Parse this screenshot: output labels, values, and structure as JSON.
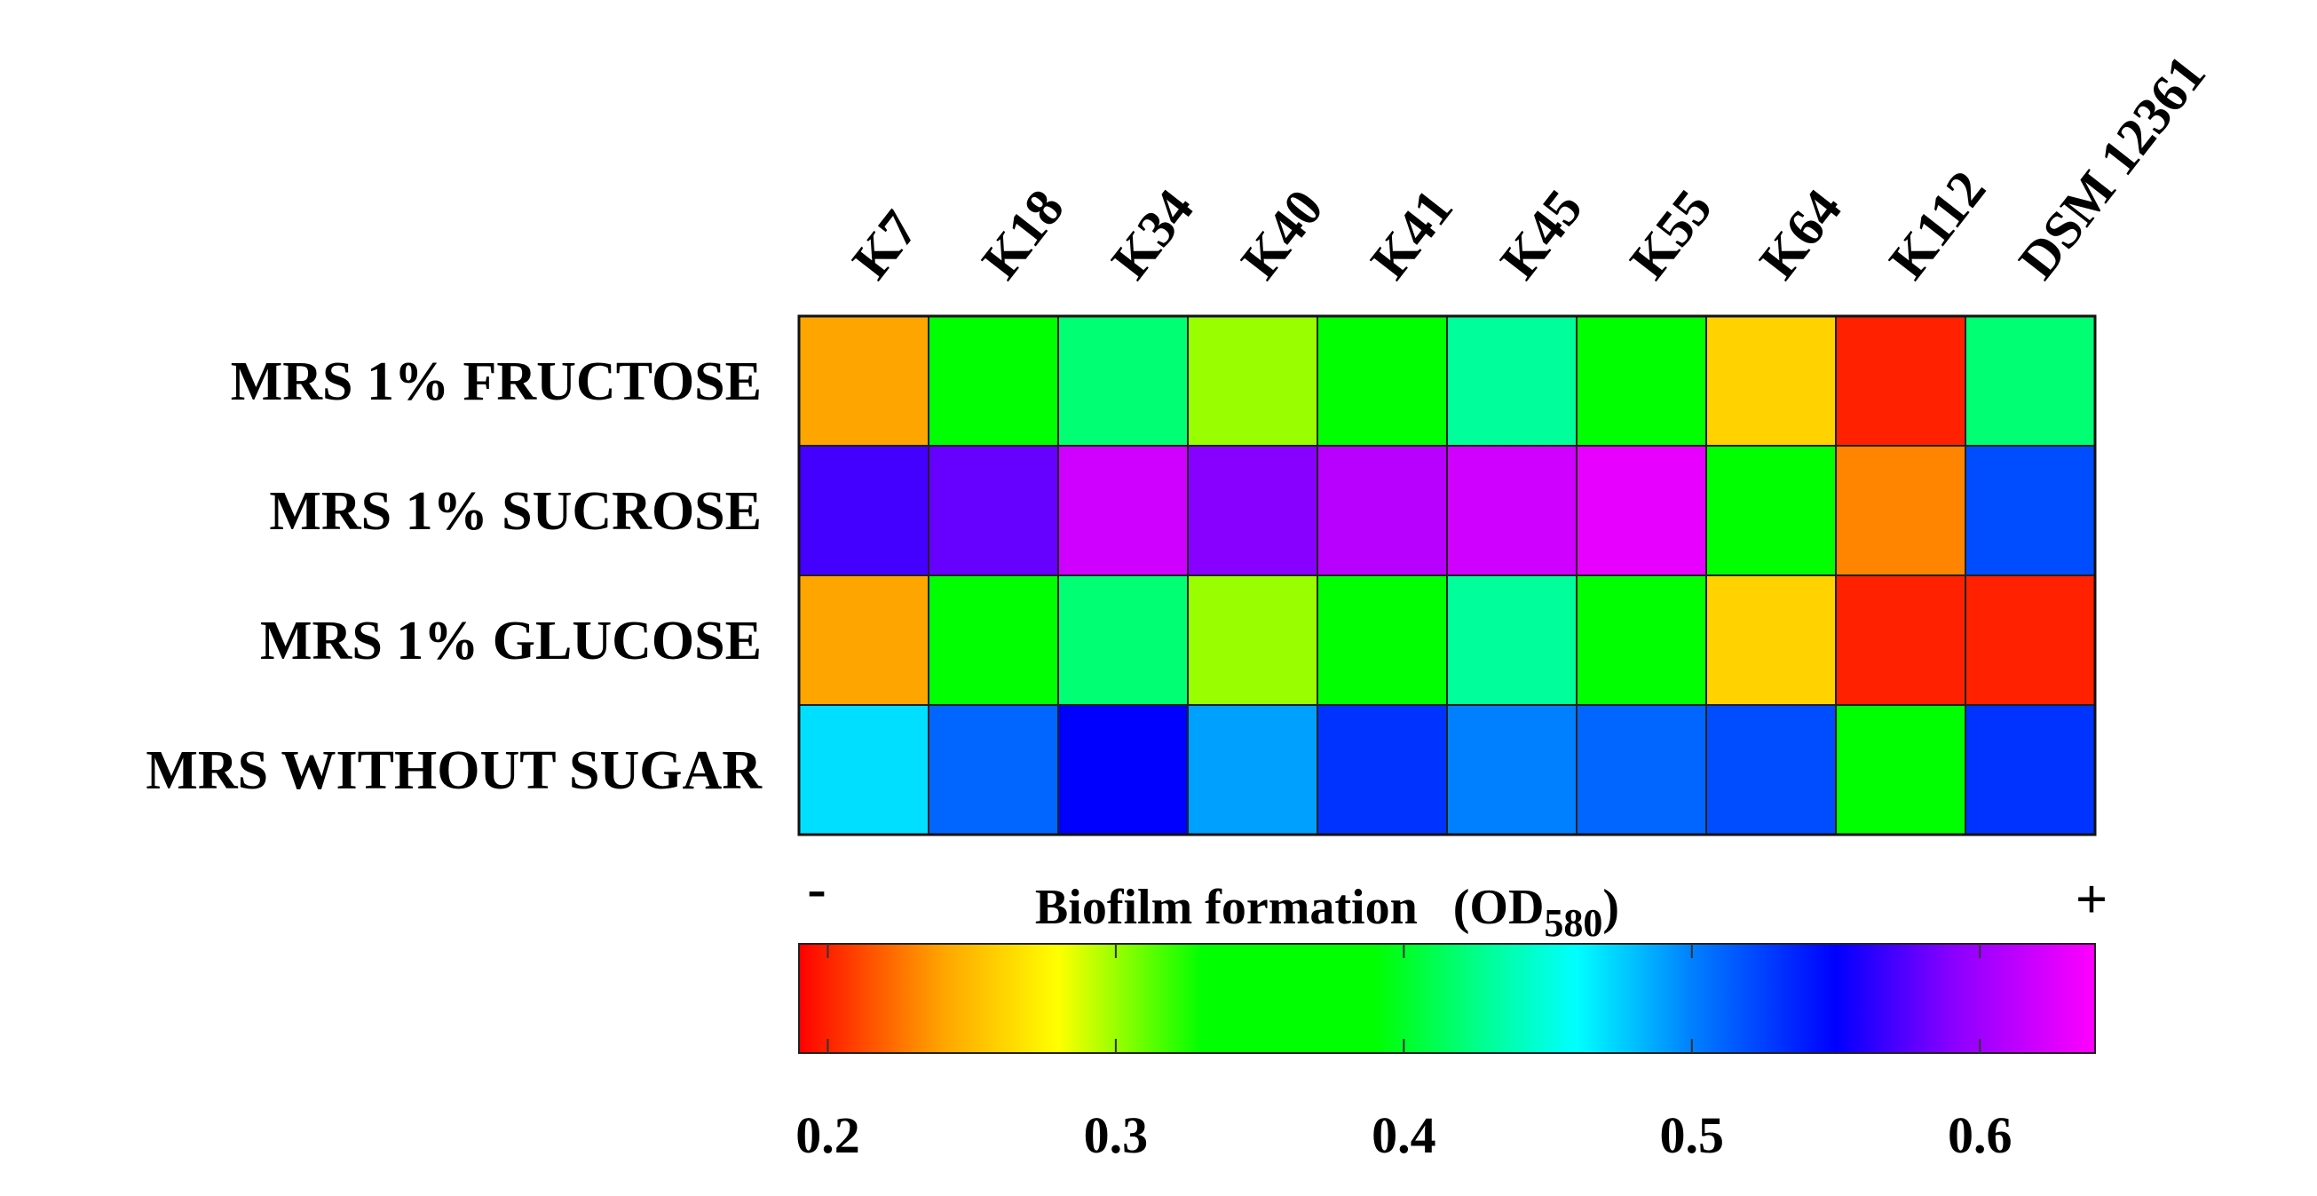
{
  "chart_data": {
    "type": "heatmap",
    "columns": [
      "K7",
      "K18",
      "K34",
      "K40",
      "K41",
      "K45",
      "K55",
      "K64",
      "K112",
      "DSM 12361"
    ],
    "rows": [
      "MRS 1% FRUCTOSE",
      "MRS 1% SUCROSE",
      "MRS 1% GLUCOSE",
      "MRS WITHOUT SUGAR"
    ],
    "values": [
      [
        0.24,
        0.35,
        0.42,
        0.3,
        0.37,
        0.43,
        0.37,
        0.26,
        0.2,
        0.42
      ],
      [
        0.57,
        0.58,
        0.62,
        0.59,
        0.61,
        0.62,
        0.63,
        0.37,
        0.23,
        0.52
      ],
      [
        0.24,
        0.35,
        0.42,
        0.3,
        0.37,
        0.43,
        0.37,
        0.26,
        0.2,
        0.2
      ],
      [
        0.47,
        0.51,
        0.55,
        0.49,
        0.53,
        0.5,
        0.51,
        0.52,
        0.36,
        0.53
      ]
    ],
    "colorbar": {
      "title_main": "Biofilm formation",
      "title_open": "(OD",
      "title_sub": "580",
      "title_close": ")",
      "min_sign": "-",
      "max_sign": "+",
      "range": [
        0.19,
        0.64
      ],
      "ticks": [
        0.2,
        0.3,
        0.4,
        0.5,
        0.6
      ],
      "tick_labels": [
        "0.2",
        "0.3",
        "0.4",
        "0.5",
        "0.6"
      ],
      "stops": [
        {
          "value": 0.19,
          "color": "#ff0000"
        },
        {
          "value": 0.24,
          "color": "#ffa500"
        },
        {
          "value": 0.28,
          "color": "#ffff00"
        },
        {
          "value": 0.33,
          "color": "#00ff00"
        },
        {
          "value": 0.39,
          "color": "#00ff00"
        },
        {
          "value": 0.43,
          "color": "#00ff9a"
        },
        {
          "value": 0.46,
          "color": "#00ffff"
        },
        {
          "value": 0.5,
          "color": "#0080ff"
        },
        {
          "value": 0.55,
          "color": "#0000ff"
        },
        {
          "value": 0.59,
          "color": "#8800ff"
        },
        {
          "value": 0.64,
          "color": "#ff00ff"
        }
      ]
    }
  }
}
